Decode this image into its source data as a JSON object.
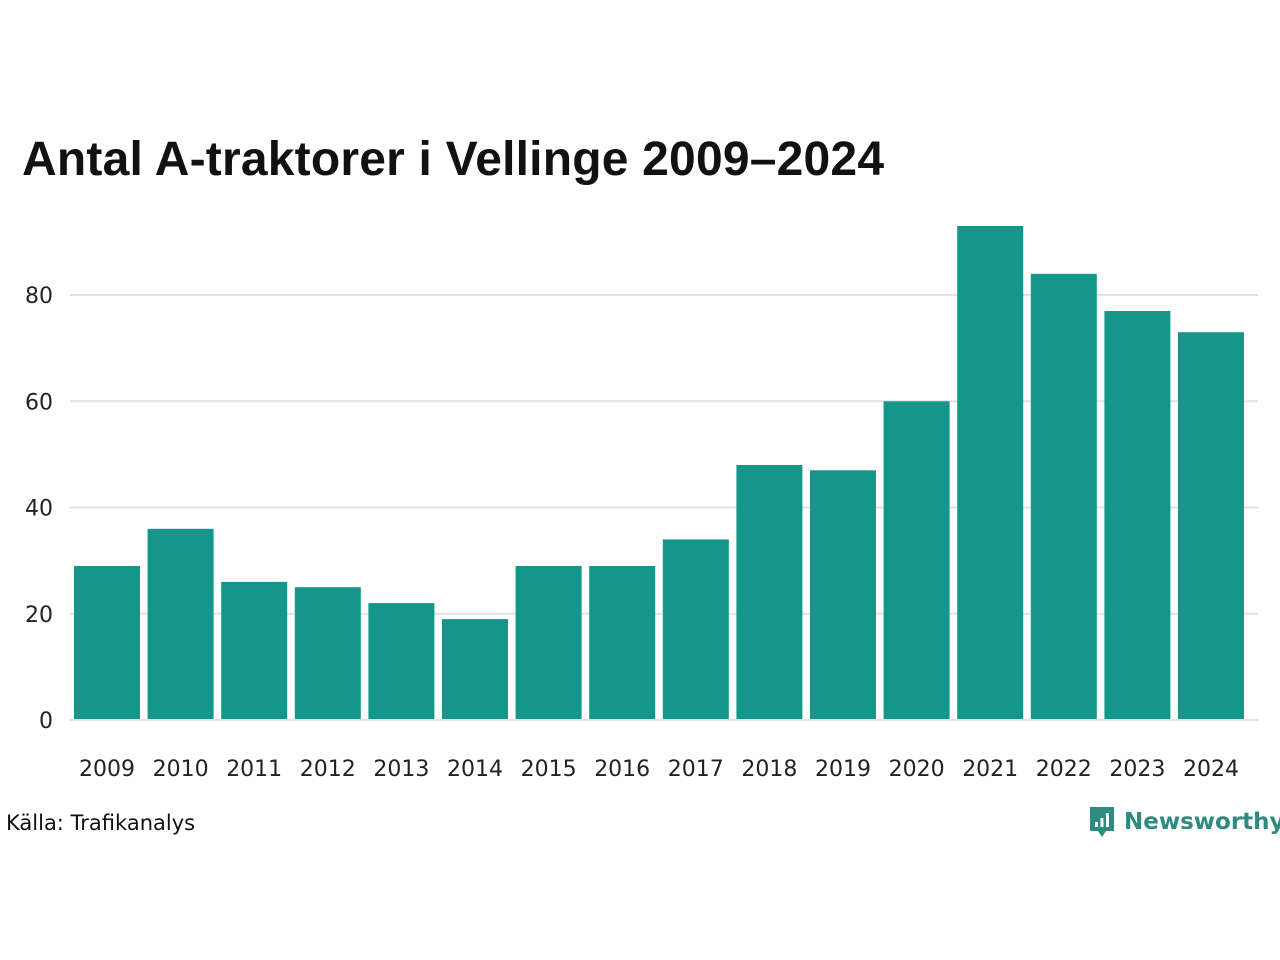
{
  "chart_data": {
    "type": "bar",
    "title": "Antal A-traktorer i Vellinge 2009–2024",
    "categories": [
      "2009",
      "2010",
      "2011",
      "2012",
      "2013",
      "2014",
      "2015",
      "2016",
      "2017",
      "2018",
      "2019",
      "2020",
      "2021",
      "2022",
      "2023",
      "2024"
    ],
    "values": [
      29,
      36,
      26,
      25,
      22,
      19,
      29,
      29,
      34,
      48,
      47,
      60,
      93,
      84,
      77,
      73
    ],
    "ylim": [
      0,
      93
    ],
    "yticks": [
      0,
      20,
      40,
      60,
      80
    ],
    "grid": true,
    "bar_color": "#14968a",
    "grid_color": "#e2e2e2"
  },
  "footer": {
    "source": "Källa: Trafikanalys",
    "brand": "Newsworthy",
    "brand_color": "#2e8b7f",
    "brand_icon": "bar-chart-speech-bubble-icon"
  }
}
